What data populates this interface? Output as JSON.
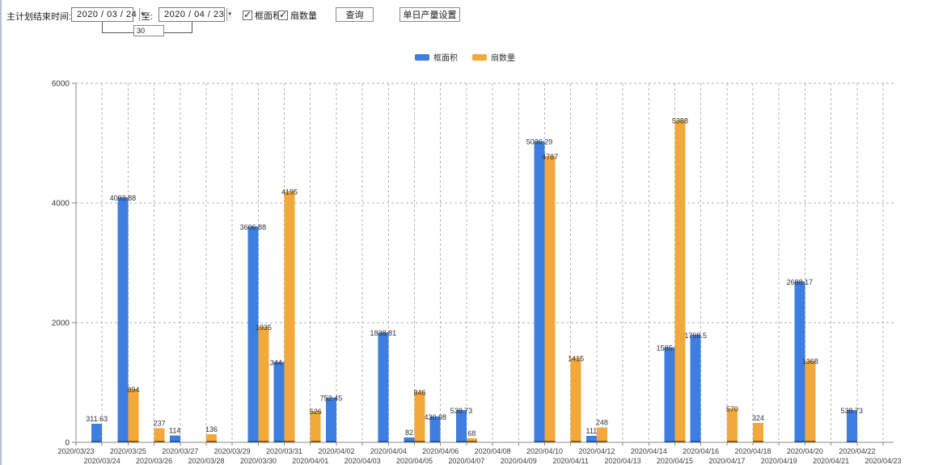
{
  "toolbar": {
    "label_plan_end": "主计划结束时间:",
    "date_from": "2020 / 03 / 24",
    "label_to": "至:",
    "date_to": "2020 / 04 / 23",
    "interval_days": "30",
    "checkbox_frame_area": {
      "label": "框面积",
      "checked": true
    },
    "checkbox_fan_count": {
      "label": "扇数量",
      "checked": true
    },
    "query_button": "查询",
    "daily_output_button": "单日产量设置"
  },
  "legend": {
    "items": [
      {
        "label": "框面积",
        "color": "#3e7ee0"
      },
      {
        "label": "扇数量",
        "color": "#f2a93b"
      }
    ]
  },
  "chart_data": {
    "type": "bar",
    "title": "",
    "xlabel": "",
    "ylabel": "",
    "ylim": [
      0,
      6000
    ],
    "yticks": [
      0,
      2000,
      4000,
      6000
    ],
    "grid": true,
    "legend_position": "top",
    "categories": [
      "2020/03/23",
      "2020/03/24",
      "2020/03/25",
      "2020/03/26",
      "2020/03/27",
      "2020/03/28",
      "2020/03/29",
      "2020/03/30",
      "2020/03/31",
      "2020/04/01",
      "2020/04/02",
      "2020/04/03",
      "2020/04/04",
      "2020/04/05",
      "2020/04/06",
      "2020/04/07",
      "2020/04/08",
      "2020/04/09",
      "2020/04/10",
      "2020/04/11",
      "2020/04/12",
      "2020/04/13",
      "2020/04/14",
      "2020/04/15",
      "2020/04/16",
      "2020/04/17",
      "2020/04/18",
      "2020/04/19",
      "2020/04/20",
      "2020/04/21",
      "2020/04/22",
      "2020/04/23"
    ],
    "series": [
      {
        "name": "框面积",
        "color": "#3e7ee0",
        "base_color": "#2b57a0",
        "values": [
          null,
          311.63,
          4093.88,
          null,
          114,
          null,
          null,
          3606.88,
          1344.95,
          null,
          752.45,
          null,
          1838.81,
          82,
          430.98,
          538.73,
          null,
          null,
          5036.29,
          null,
          111,
          null,
          null,
          1585.96,
          1798.5,
          null,
          null,
          null,
          2688.17,
          null,
          538.73,
          null
        ]
      },
      {
        "name": "扇数量",
        "color": "#f2a93b",
        "base_color": "#8a5c16",
        "values": [
          null,
          null,
          894,
          237,
          null,
          136,
          null,
          1935,
          4195,
          526,
          null,
          null,
          null,
          846,
          null,
          68,
          null,
          null,
          4787,
          1415,
          248,
          null,
          null,
          5388,
          null,
          570,
          324,
          null,
          1368,
          null,
          null,
          null
        ]
      }
    ]
  }
}
